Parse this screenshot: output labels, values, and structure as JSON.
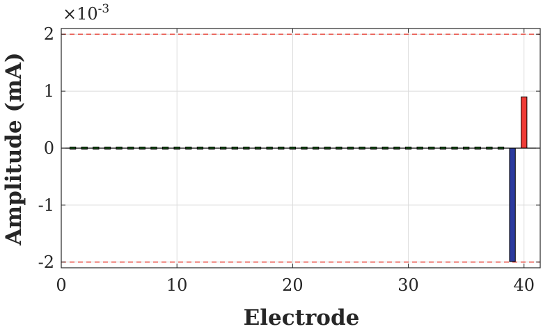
{
  "chart_data": {
    "type": "bar",
    "xlabel": "Electrode",
    "ylabel": "Amplitude (mA)",
    "xlim": [
      0,
      41.4
    ],
    "ylim": [
      -0.0021,
      0.0021
    ],
    "y_exponent_label": "×10",
    "y_exponent_power": "-3",
    "x_ticks": [
      0,
      10,
      20,
      30,
      40
    ],
    "x_tick_labels": [
      "0",
      "10",
      "20",
      "30",
      "40"
    ],
    "y_ticks": [
      -0.002,
      -0.001,
      0,
      0.001,
      0.002
    ],
    "y_tick_labels": [
      "-2",
      "-1",
      "0",
      "1",
      "2"
    ],
    "grid": true,
    "limit_lines": [
      0.002,
      -0.002
    ],
    "limit_line_color": "#e8443a",
    "bars": [
      {
        "x": 1,
        "value": 2e-05
      },
      {
        "x": 2,
        "value": 2e-05
      },
      {
        "x": 3,
        "value": 2e-05
      },
      {
        "x": 4,
        "value": 2e-05
      },
      {
        "x": 5,
        "value": 2e-05
      },
      {
        "x": 6,
        "value": 2e-05
      },
      {
        "x": 7,
        "value": 2e-05
      },
      {
        "x": 8,
        "value": 2e-05
      },
      {
        "x": 9,
        "value": 2e-05
      },
      {
        "x": 10,
        "value": 2e-05
      },
      {
        "x": 11,
        "value": 2e-05
      },
      {
        "x": 12,
        "value": 2e-05
      },
      {
        "x": 13,
        "value": 2e-05
      },
      {
        "x": 14,
        "value": 2e-05
      },
      {
        "x": 15,
        "value": 2e-05
      },
      {
        "x": 16,
        "value": 2e-05
      },
      {
        "x": 17,
        "value": 2e-05
      },
      {
        "x": 18,
        "value": 2e-05
      },
      {
        "x": 19,
        "value": 2e-05
      },
      {
        "x": 20,
        "value": 2e-05
      },
      {
        "x": 21,
        "value": 2e-05
      },
      {
        "x": 22,
        "value": 2e-05
      },
      {
        "x": 23,
        "value": 2e-05
      },
      {
        "x": 24,
        "value": 2e-05
      },
      {
        "x": 25,
        "value": 2e-05
      },
      {
        "x": 26,
        "value": 2e-05
      },
      {
        "x": 27,
        "value": 2e-05
      },
      {
        "x": 28,
        "value": 2e-05
      },
      {
        "x": 29,
        "value": 2e-05
      },
      {
        "x": 30,
        "value": 2e-05
      },
      {
        "x": 31,
        "value": 2e-05
      },
      {
        "x": 32,
        "value": 2e-05
      },
      {
        "x": 33,
        "value": 2e-05
      },
      {
        "x": 34,
        "value": 2e-05
      },
      {
        "x": 35,
        "value": 2e-05
      },
      {
        "x": 36,
        "value": 2e-05
      },
      {
        "x": 37,
        "value": 2e-05
      },
      {
        "x": 38,
        "value": 2e-05
      },
      {
        "x": 39,
        "value": -0.00199
      },
      {
        "x": 40,
        "value": 0.0009
      }
    ],
    "colors": {
      "small": "#33cc33",
      "negative": "#2b3a9e",
      "positive": "#ef3b36"
    }
  }
}
